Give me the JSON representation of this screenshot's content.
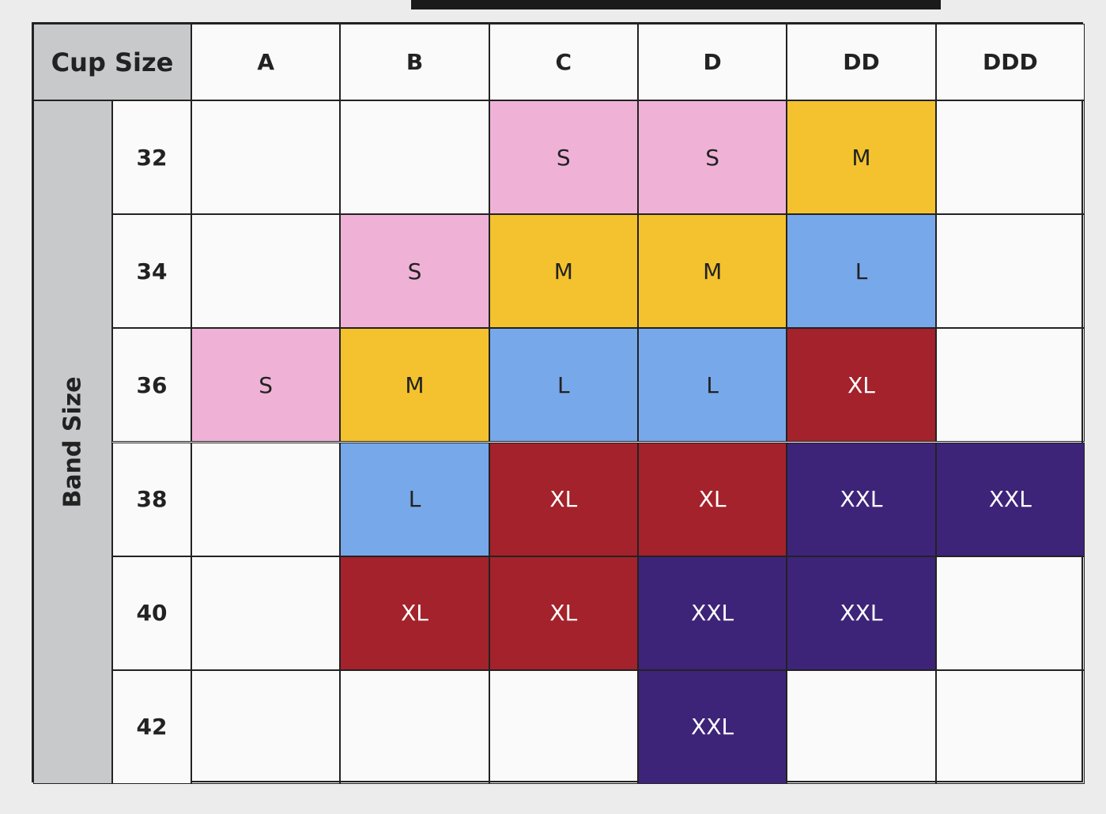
{
  "table": {
    "corner_label": "Cup Size",
    "row_header_label": "Band Size",
    "columns": [
      "A",
      "B",
      "C",
      "D",
      "DD",
      "DDD"
    ],
    "rows": [
      {
        "band": "32",
        "cells": [
          null,
          null,
          "S",
          "S",
          "M",
          null
        ]
      },
      {
        "band": "34",
        "cells": [
          null,
          "S",
          "M",
          "M",
          "L",
          null
        ]
      },
      {
        "band": "36",
        "cells": [
          "S",
          "M",
          "L",
          "L",
          "XL",
          null
        ]
      },
      {
        "band": "38",
        "cells": [
          null,
          "L",
          "XL",
          "XL",
          "XXL",
          "XXL"
        ]
      },
      {
        "band": "40",
        "cells": [
          null,
          "XL",
          "XL",
          "XXL",
          "XXL",
          null
        ]
      },
      {
        "band": "42",
        "cells": [
          null,
          null,
          null,
          "XXL",
          null,
          null
        ]
      }
    ],
    "colors": {
      "S": "#efb2d6",
      "M": "#f3c22e",
      "L": "#77a8ea",
      "XL": "#a4222b",
      "XXL": "#3d2479"
    },
    "text_colors": {
      "S": "#222222",
      "M": "#222222",
      "L": "#222222",
      "XL": "#ffffff",
      "XXL": "#ffffff"
    }
  }
}
